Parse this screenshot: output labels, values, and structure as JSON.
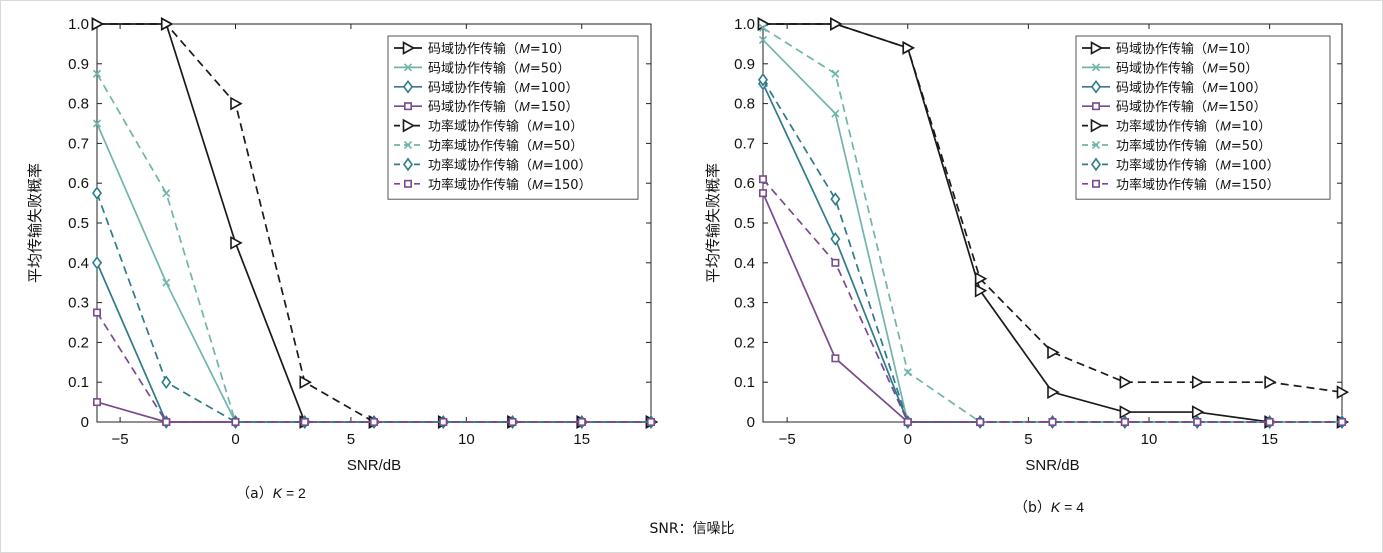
{
  "figure_note": "SNR：信噪比",
  "colors": {
    "M10": "#1a1a1a",
    "M50": "#6fb5ac",
    "M100": "#2e7a8a",
    "M150": "#7a4a8f"
  },
  "chart_data": [
    {
      "type": "line",
      "caption_prefix": "（a）",
      "caption_var": "K",
      "caption_rest": " = 2",
      "xlabel": "SNR/dB",
      "ylabel": "平均传输失败概率",
      "xlim": [
        -6,
        18
      ],
      "ylim": [
        0,
        1
      ],
      "xticks": [
        -5,
        0,
        5,
        10,
        15
      ],
      "yticks": [
        "0",
        "0.1",
        "0.2",
        "0.3",
        "0.4",
        "0.5",
        "0.6",
        "0.7",
        "0.8",
        "0.9",
        "1.0"
      ],
      "legend_position": "top-right",
      "x": [
        -6,
        -3,
        0,
        3,
        6,
        9,
        12,
        15,
        18
      ],
      "series": [
        {
          "name": "码域协作传输",
          "m": "10",
          "color": "M10",
          "dash": false,
          "marker": "triangle",
          "values": [
            1.0,
            1.0,
            0.45,
            0,
            0,
            0,
            0,
            0,
            0
          ]
        },
        {
          "name": "码域协作传输",
          "m": "50",
          "color": "M50",
          "dash": false,
          "marker": "x",
          "values": [
            0.75,
            0.35,
            0,
            0,
            0,
            0,
            0,
            0,
            0
          ]
        },
        {
          "name": "码域协作传输",
          "m": "100",
          "color": "M100",
          "dash": false,
          "marker": "diamond",
          "values": [
            0.4,
            0,
            0,
            0,
            0,
            0,
            0,
            0,
            0
          ]
        },
        {
          "name": "码域协作传输",
          "m": "150",
          "color": "M150",
          "dash": false,
          "marker": "square",
          "values": [
            0.05,
            0,
            0,
            0,
            0,
            0,
            0,
            0,
            0
          ]
        },
        {
          "name": "功率域协作传输",
          "m": "10",
          "color": "M10",
          "dash": true,
          "marker": "triangle",
          "values": [
            1.0,
            1.0,
            0.8,
            0.1,
            0,
            0,
            0,
            0,
            0
          ]
        },
        {
          "name": "功率域协作传输",
          "m": "50",
          "color": "M50",
          "dash": true,
          "marker": "x",
          "values": [
            0.875,
            0.575,
            0,
            0,
            0,
            0,
            0,
            0,
            0
          ]
        },
        {
          "name": "功率域协作传输",
          "m": "100",
          "color": "M100",
          "dash": true,
          "marker": "diamond",
          "values": [
            0.575,
            0.1,
            0,
            0,
            0,
            0,
            0,
            0,
            0
          ]
        },
        {
          "name": "功率域协作传输",
          "m": "150",
          "color": "M150",
          "dash": true,
          "marker": "square",
          "values": [
            0.275,
            0,
            0,
            0,
            0,
            0,
            0,
            0,
            0
          ]
        }
      ]
    },
    {
      "type": "line",
      "caption_prefix": "（b）",
      "caption_var": "K",
      "caption_rest": " = 4",
      "xlabel": "SNR/dB",
      "ylabel": "平均传输失败概率",
      "xlim": [
        -6,
        18
      ],
      "ylim": [
        0,
        1
      ],
      "xticks": [
        -5,
        0,
        5,
        10,
        15
      ],
      "yticks": [
        "0",
        "0.1",
        "0.2",
        "0.3",
        "0.4",
        "0.5",
        "0.6",
        "0.7",
        "0.8",
        "0.9",
        "1.0"
      ],
      "legend_position": "top-right",
      "x": [
        -6,
        -3,
        0,
        3,
        6,
        9,
        12,
        15,
        18
      ],
      "series": [
        {
          "name": "码域协作传输",
          "m": "10",
          "color": "M10",
          "dash": false,
          "marker": "triangle",
          "values": [
            1.0,
            1.0,
            0.94,
            0.33,
            0.075,
            0.025,
            0.025,
            0,
            0
          ]
        },
        {
          "name": "码域协作传输",
          "m": "50",
          "color": "M50",
          "dash": false,
          "marker": "x",
          "values": [
            0.96,
            0.775,
            0,
            0,
            0,
            0,
            0,
            0,
            0
          ]
        },
        {
          "name": "码域协作传输",
          "m": "100",
          "color": "M100",
          "dash": false,
          "marker": "diamond",
          "values": [
            0.85,
            0.46,
            0,
            0,
            0,
            0,
            0,
            0,
            0
          ]
        },
        {
          "name": "码域协作传输",
          "m": "150",
          "color": "M150",
          "dash": false,
          "marker": "square",
          "values": [
            0.575,
            0.16,
            0,
            0,
            0,
            0,
            0,
            0,
            0
          ]
        },
        {
          "name": "功率域协作传输",
          "m": "10",
          "color": "M10",
          "dash": true,
          "marker": "triangle",
          "values": [
            1.0,
            1.0,
            0.94,
            0.36,
            0.175,
            0.1,
            0.1,
            0.1,
            0.075
          ]
        },
        {
          "name": "功率域协作传输",
          "m": "50",
          "color": "M50",
          "dash": true,
          "marker": "x",
          "values": [
            0.99,
            0.875,
            0.125,
            0,
            0,
            0,
            0,
            0,
            0
          ]
        },
        {
          "name": "功率域协作传输",
          "m": "100",
          "color": "M100",
          "dash": true,
          "marker": "diamond",
          "values": [
            0.86,
            0.56,
            0,
            0,
            0,
            0,
            0,
            0,
            0
          ]
        },
        {
          "name": "功率域协作传输",
          "m": "150",
          "color": "M150",
          "dash": true,
          "marker": "square",
          "values": [
            0.61,
            0.4,
            0,
            0,
            0,
            0,
            0,
            0,
            0
          ]
        }
      ]
    }
  ]
}
